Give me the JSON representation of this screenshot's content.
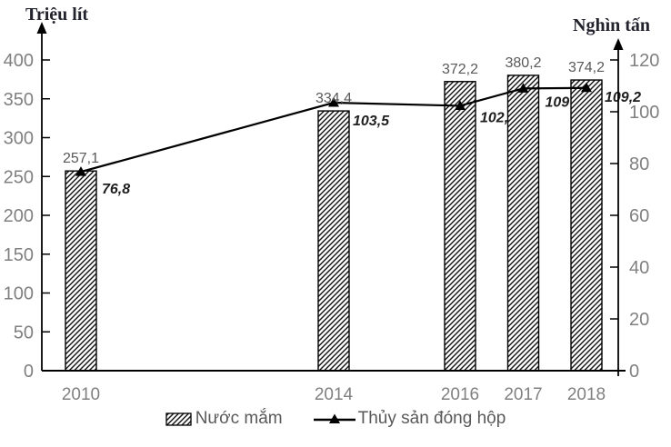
{
  "chart_data": {
    "type": "bar",
    "title": "",
    "categories": [
      2010,
      2014,
      2016,
      2017,
      2018
    ],
    "series": [
      {
        "name": "Nước mắm",
        "type": "bar",
        "axis": "left",
        "values": [
          257.1,
          334.4,
          372.2,
          380.2,
          374.2
        ],
        "labels": [
          "257,1",
          "334,4",
          "372,2",
          "380,2",
          "374,2"
        ]
      },
      {
        "name": "Thủy sản đóng hộp",
        "type": "line",
        "axis": "right",
        "marker": "triangle",
        "values": [
          76.8,
          103.5,
          102.3,
          109,
          109.2
        ],
        "labels": [
          "76,8",
          "103,5",
          "102,3",
          "109",
          "109,2"
        ]
      }
    ],
    "left_axis": {
      "title": "Triệu lít",
      "min": 0,
      "max": 400,
      "step": 50,
      "ticks": [
        0,
        50,
        100,
        150,
        200,
        250,
        300,
        350,
        400
      ]
    },
    "right_axis": {
      "title": "Nghìn tấn",
      "min": 0,
      "max": 120,
      "step": 20,
      "ticks": [
        0,
        20,
        40,
        60,
        80,
        100,
        120
      ]
    },
    "legend": {
      "position": "bottom",
      "items": [
        "Nước mắm",
        "Thủy sản đóng hộp"
      ]
    },
    "grid": false
  },
  "colors": {
    "axis": "#000000",
    "bar_fill_stripes": "#1a1a1a",
    "bar_border": "#000000",
    "line": "#000000",
    "tick_label": "#808080",
    "year_label": "#808080",
    "bar_value_label": "#595959",
    "line_value_label": "#1f1f1f",
    "axis_title": "#23232e",
    "legend_label": "#595959"
  }
}
